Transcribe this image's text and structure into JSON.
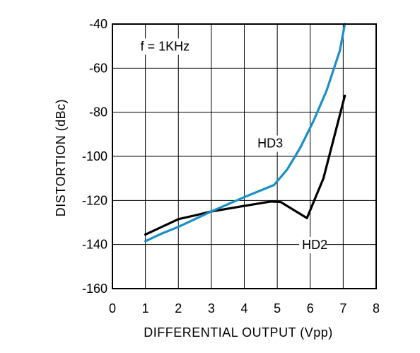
{
  "chart_data": {
    "type": "line",
    "title": "",
    "xlabel": "DIFFERENTIAL OUTPUT (Vpp)",
    "ylabel": "DISTORTION (dBc)",
    "xlim": [
      0,
      8
    ],
    "ylim": [
      -160,
      -40
    ],
    "x_ticks": [
      "0",
      "1",
      "2",
      "3",
      "4",
      "5",
      "6",
      "7",
      "8"
    ],
    "y_ticks": [
      "-40",
      "-60",
      "-80",
      "-100",
      "-120",
      "-140",
      "-160"
    ],
    "grid": true,
    "annotations": [
      {
        "text": "f = 1KHz",
        "x": 0.85,
        "y": -52
      },
      {
        "text": "HD3",
        "x": 4.4,
        "y": -96
      },
      {
        "text": "HD2",
        "x": 5.75,
        "y": -142
      }
    ],
    "series": [
      {
        "name": "HD2",
        "color": "#000000",
        "points": [
          [
            1,
            -135.5
          ],
          [
            1.5,
            -132
          ],
          [
            2,
            -128.5
          ],
          [
            2.5,
            -126.8
          ],
          [
            3,
            -125
          ],
          [
            4,
            -122.5
          ],
          [
            4.8,
            -120.5
          ],
          [
            5.1,
            -120.7
          ],
          [
            5.9,
            -128
          ],
          [
            6.4,
            -110
          ],
          [
            7.05,
            -72.5
          ]
        ]
      },
      {
        "name": "HD3",
        "color": "#1a8fc6",
        "points": [
          [
            1,
            -138.5
          ],
          [
            1.5,
            -135
          ],
          [
            2,
            -132
          ],
          [
            2.5,
            -128.5
          ],
          [
            3,
            -125
          ],
          [
            4,
            -118.5
          ],
          [
            4.9,
            -113
          ],
          [
            5.3,
            -106
          ],
          [
            5.7,
            -96
          ],
          [
            6.1,
            -84
          ],
          [
            6.5,
            -70
          ],
          [
            6.9,
            -52
          ],
          [
            7.05,
            -40
          ]
        ]
      }
    ]
  }
}
